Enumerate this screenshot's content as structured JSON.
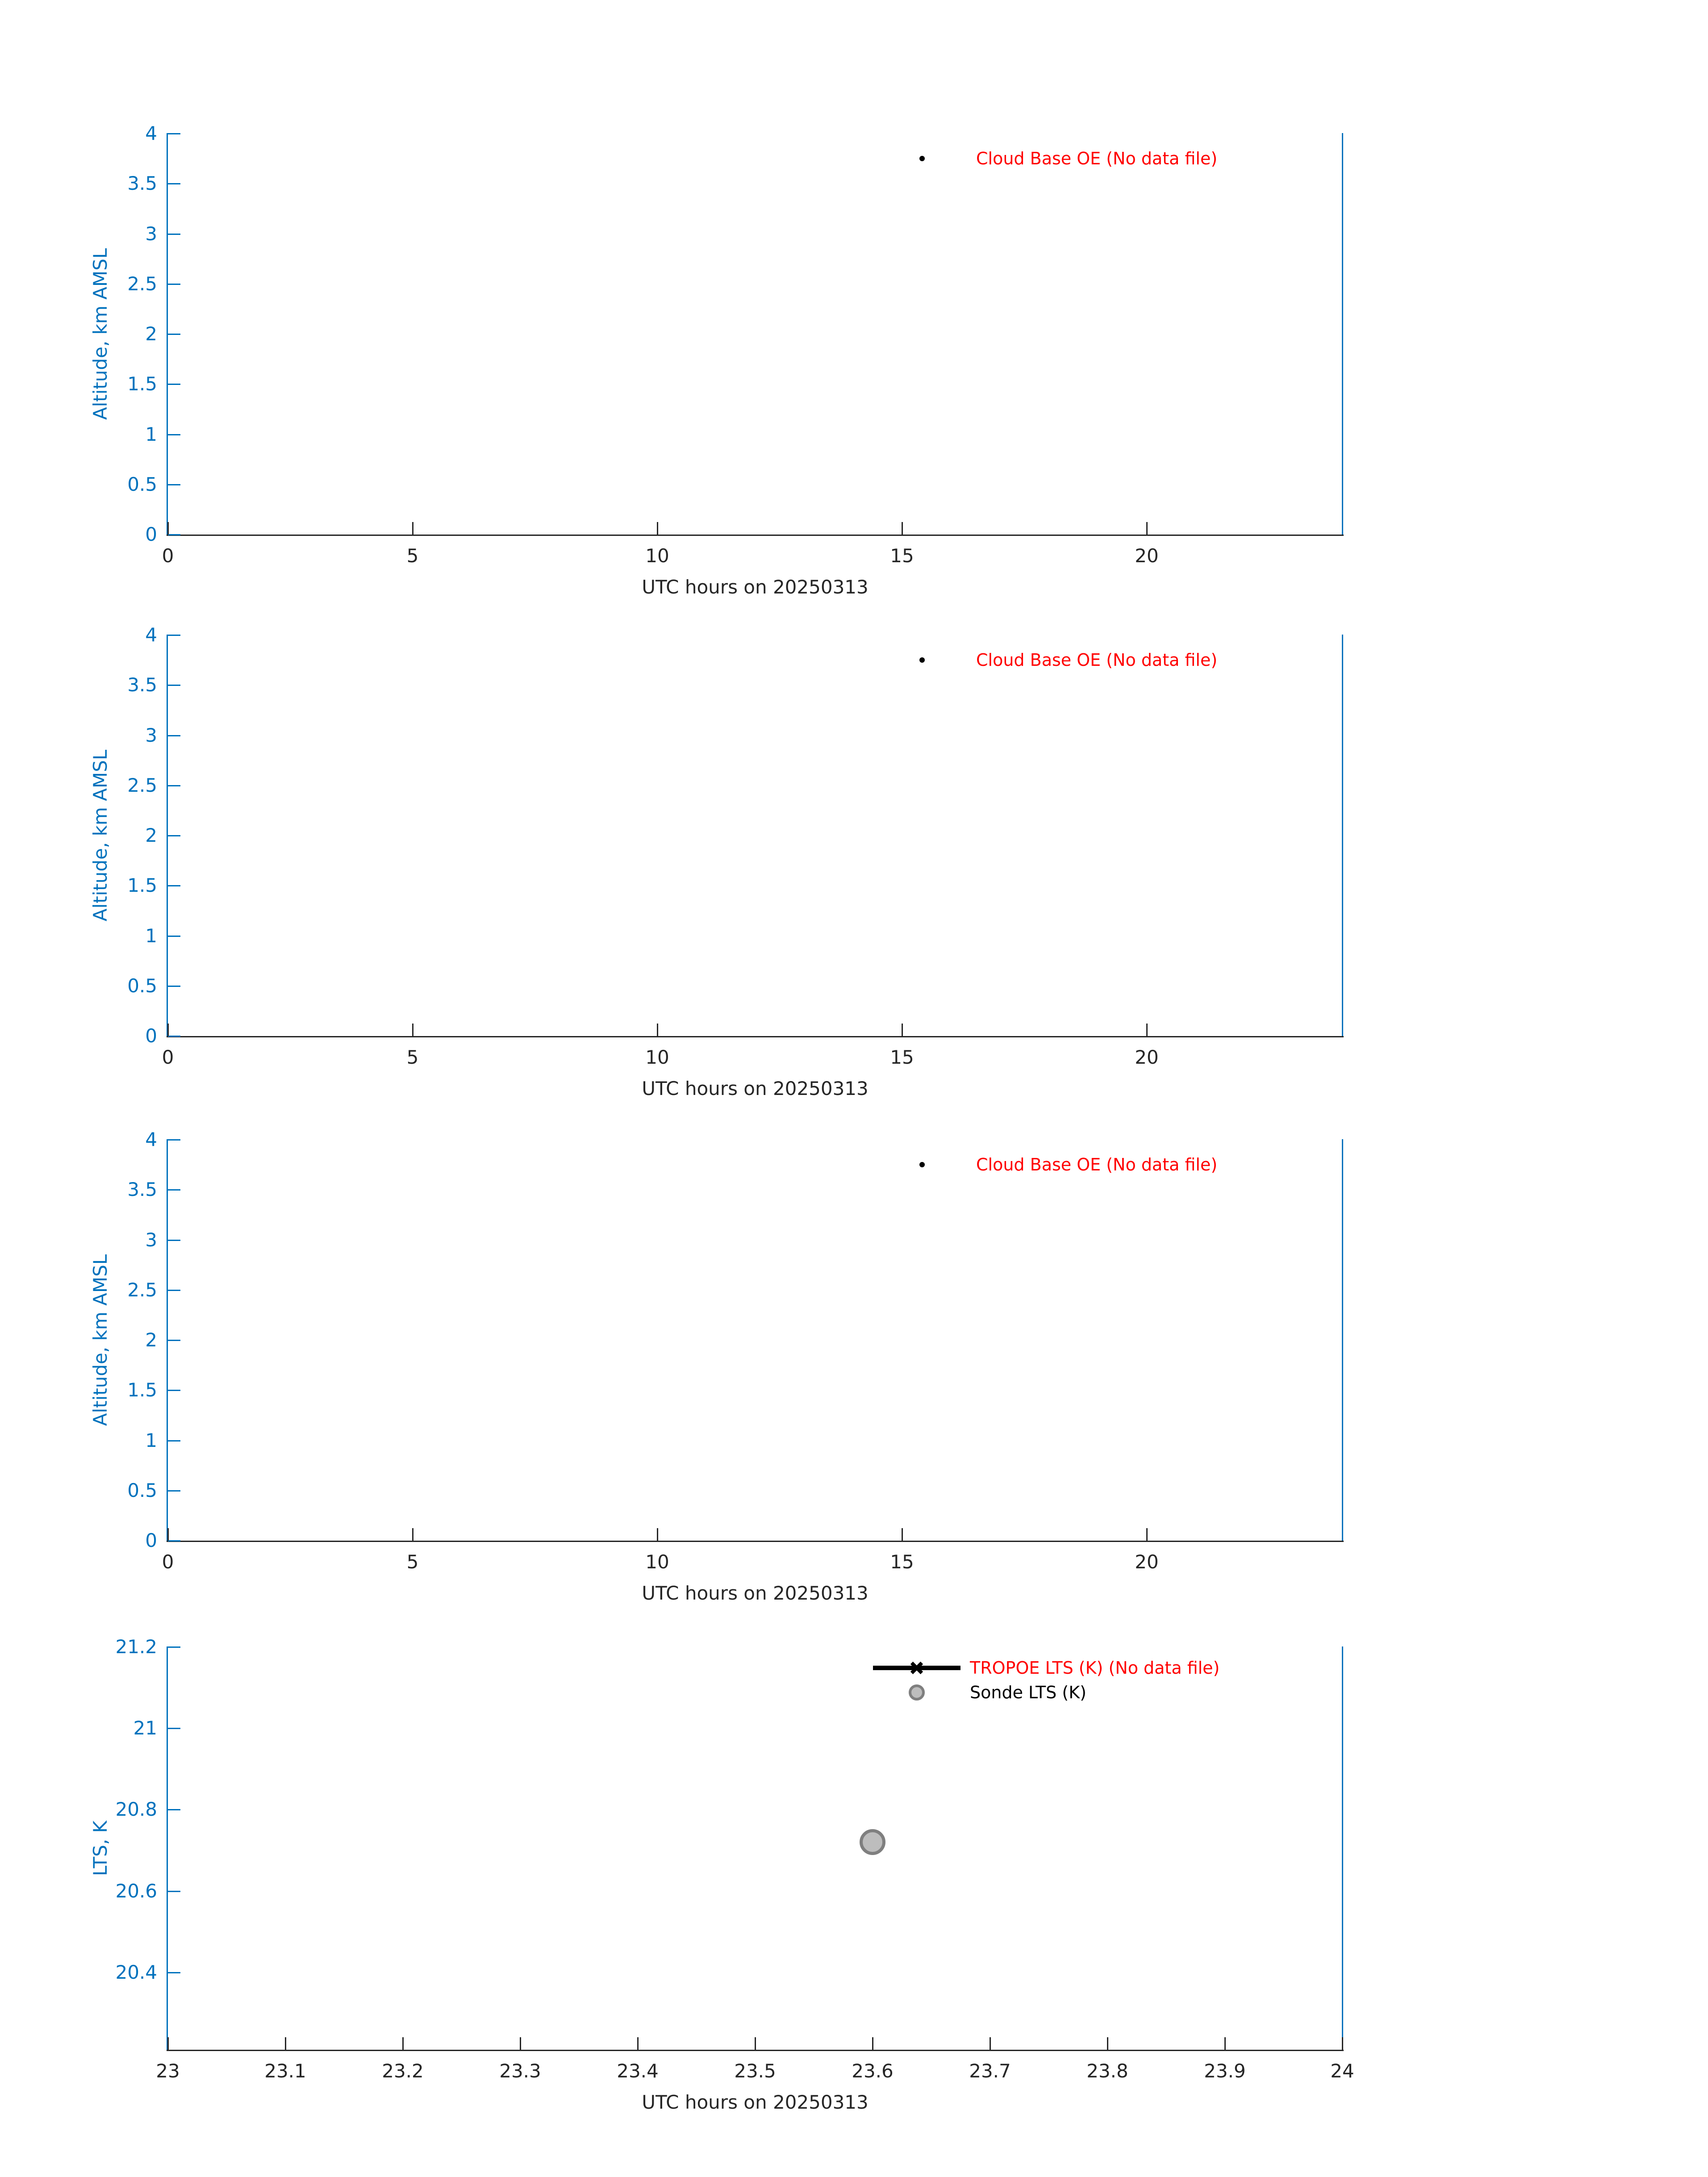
{
  "figure": {
    "background": "#ffffff",
    "date_label": "20250313"
  },
  "colors": {
    "axis_blue": "#0072BD",
    "axis_dark": "#262626",
    "legend_red": "#ff0000",
    "legend_black": "#000000",
    "sonde_marker_fill": "#bdbdbd",
    "sonde_marker_edge": "#7f7f7f"
  },
  "chart_data": [
    {
      "type": "scatter",
      "title": "",
      "xlabel": "UTC hours on 20250313",
      "ylabel": "Altitude, km AMSL",
      "xlim": [
        0,
        24
      ],
      "ylim": [
        0,
        4
      ],
      "xticks": [
        0,
        5,
        10,
        15,
        20
      ],
      "yticks": [
        4,
        3.5,
        3,
        2.5,
        2,
        1.5,
        1,
        0.5,
        0
      ],
      "xtick_labels": [
        "0",
        "5",
        "10",
        "15",
        "20"
      ],
      "ytick_labels": [
        "4",
        "3.5",
        "3",
        "2.5",
        "2",
        "1.5",
        "1",
        "0.5",
        "0"
      ],
      "grid": false,
      "legend_position": "upper-center-inside-no-frame",
      "series": [
        {
          "name": "Cloud Base OE (No data file)",
          "marker": "point",
          "marker_color": "#000000",
          "label_color": "#ff0000",
          "x": [],
          "y": [],
          "note": "No data file"
        }
      ]
    },
    {
      "type": "scatter",
      "title": "",
      "xlabel": "UTC hours on 20250313",
      "ylabel": "Altitude, km AMSL",
      "xlim": [
        0,
        24
      ],
      "ylim": [
        0,
        4
      ],
      "xticks": [
        0,
        5,
        10,
        15,
        20
      ],
      "yticks": [
        4,
        3.5,
        3,
        2.5,
        2,
        1.5,
        1,
        0.5,
        0
      ],
      "xtick_labels": [
        "0",
        "5",
        "10",
        "15",
        "20"
      ],
      "ytick_labels": [
        "4",
        "3.5",
        "3",
        "2.5",
        "2",
        "1.5",
        "1",
        "0.5",
        "0"
      ],
      "grid": false,
      "legend_position": "upper-center-inside-no-frame",
      "series": [
        {
          "name": "Cloud Base OE (No data file)",
          "marker": "point",
          "marker_color": "#000000",
          "label_color": "#ff0000",
          "x": [],
          "y": [],
          "note": "No data file"
        }
      ]
    },
    {
      "type": "scatter",
      "title": "",
      "xlabel": "UTC hours on 20250313",
      "ylabel": "Altitude, km AMSL",
      "xlim": [
        0,
        24
      ],
      "ylim": [
        0,
        4
      ],
      "xticks": [
        0,
        5,
        10,
        15,
        20
      ],
      "yticks": [
        4,
        3.5,
        3,
        2.5,
        2,
        1.5,
        1,
        0.5,
        0
      ],
      "xtick_labels": [
        "0",
        "5",
        "10",
        "15",
        "20"
      ],
      "ytick_labels": [
        "4",
        "3.5",
        "3",
        "2.5",
        "2",
        "1.5",
        "1",
        "0.5",
        "0"
      ],
      "grid": false,
      "legend_position": "upper-center-inside-no-frame",
      "series": [
        {
          "name": "Cloud Base OE (No data file)",
          "marker": "point",
          "marker_color": "#000000",
          "label_color": "#ff0000",
          "x": [],
          "y": [],
          "note": "No data file"
        }
      ]
    },
    {
      "type": "scatter",
      "title": "",
      "xlabel": "UTC hours on 20250313",
      "ylabel": "LTS, K",
      "xlim": [
        23,
        24
      ],
      "ylim": [
        20.21,
        21.2
      ],
      "xticks": [
        23,
        23.1,
        23.2,
        23.3,
        23.4,
        23.5,
        23.6,
        23.7,
        23.8,
        23.9,
        24
      ],
      "yticks": [
        21.2,
        21,
        20.8,
        20.6,
        20.4
      ],
      "xtick_labels": [
        "23",
        "23.1",
        "23.2",
        "23.3",
        "23.4",
        "23.5",
        "23.6",
        "23.7",
        "23.8",
        "23.9",
        "24"
      ],
      "ytick_labels": [
        "21.2",
        "21",
        "20.8",
        "20.6",
        "20.4"
      ],
      "grid": false,
      "legend_position": "upper-center-inside-no-frame",
      "series": [
        {
          "name": "TROPOE LTS (K) (No data file)",
          "marker": "line-with-x",
          "marker_color": "#000000",
          "label_color": "#ff0000",
          "x": [],
          "y": [],
          "note": "No data file"
        },
        {
          "name": "Sonde LTS (K)",
          "marker": "circle",
          "marker_fill": "#bdbdbd",
          "marker_edge": "#7f7f7f",
          "label_color": "#000000",
          "x": [
            23.6
          ],
          "y": [
            20.72
          ]
        }
      ]
    }
  ]
}
